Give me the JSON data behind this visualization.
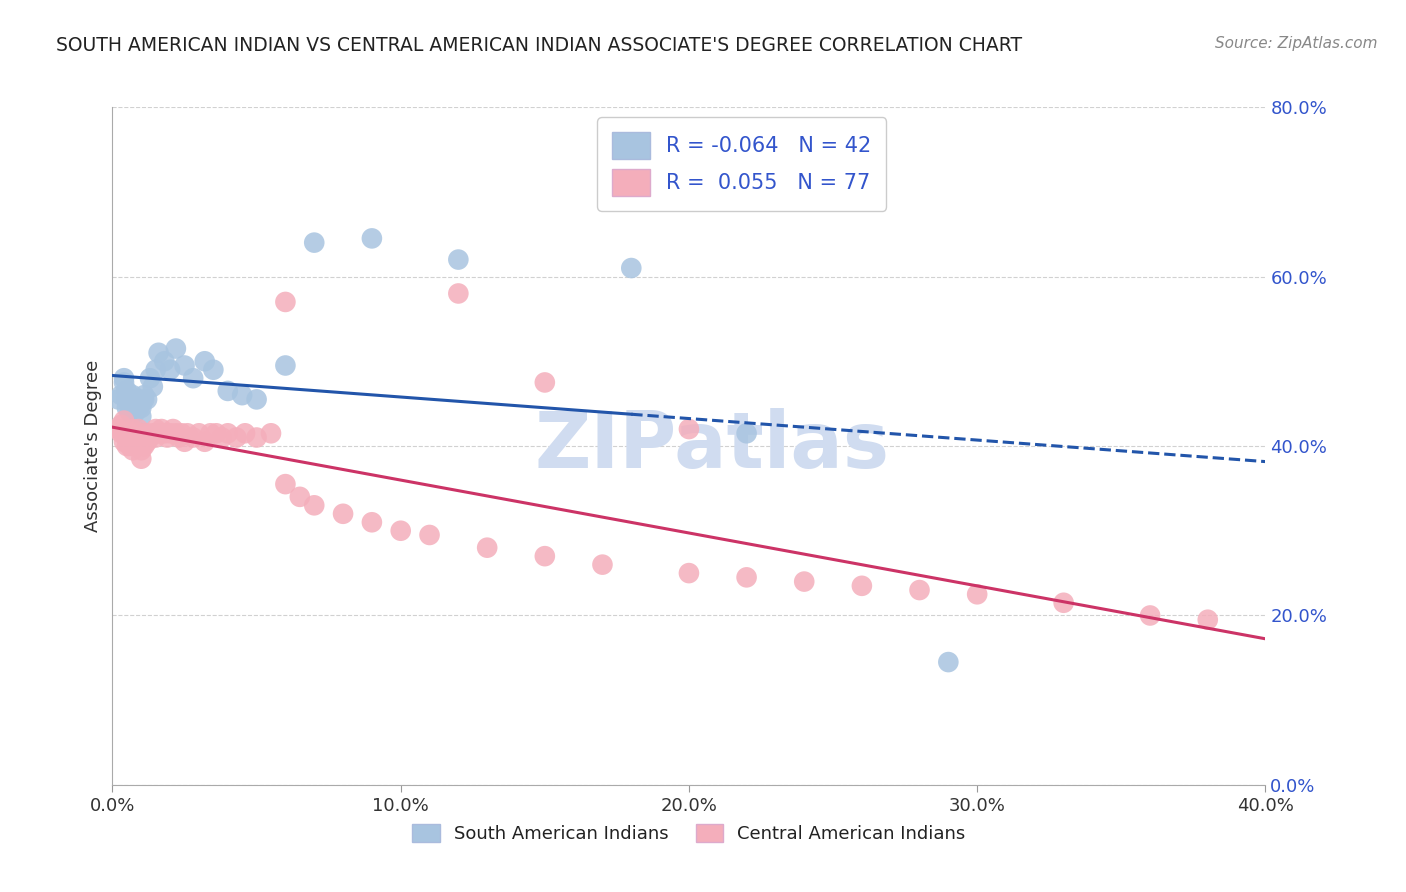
{
  "title": "SOUTH AMERICAN INDIAN VS CENTRAL AMERICAN INDIAN ASSOCIATE'S DEGREE CORRELATION CHART",
  "source": "Source: ZipAtlas.com",
  "ylabel": "Associate's Degree",
  "xlim": [
    0.0,
    0.4
  ],
  "ylim": [
    0.0,
    0.8
  ],
  "xticks": [
    0.0,
    0.1,
    0.2,
    0.3,
    0.4
  ],
  "yticks": [
    0.0,
    0.2,
    0.4,
    0.6,
    0.8
  ],
  "blue_R": -0.064,
  "blue_N": 42,
  "pink_R": 0.055,
  "pink_N": 77,
  "blue_color": "#A8C4E0",
  "pink_color": "#F4AEBB",
  "blue_line_color": "#2255AA",
  "pink_line_color": "#CC3366",
  "background_color": "#FFFFFF",
  "grid_color": "#CCCCCC",
  "title_color": "#222222",
  "watermark_color": "#D0DCF0",
  "legend_text_color": "#3355CC",
  "blue_x": [
    0.002,
    0.003,
    0.004,
    0.004,
    0.005,
    0.005,
    0.005,
    0.006,
    0.006,
    0.007,
    0.007,
    0.008,
    0.008,
    0.009,
    0.009,
    0.01,
    0.01,
    0.01,
    0.011,
    0.011,
    0.012,
    0.013,
    0.014,
    0.015,
    0.016,
    0.018,
    0.02,
    0.022,
    0.025,
    0.028,
    0.032,
    0.035,
    0.04,
    0.045,
    0.05,
    0.06,
    0.07,
    0.09,
    0.12,
    0.18,
    0.22,
    0.29
  ],
  "blue_y": [
    0.455,
    0.46,
    0.475,
    0.48,
    0.465,
    0.455,
    0.445,
    0.45,
    0.44,
    0.46,
    0.455,
    0.45,
    0.44,
    0.455,
    0.445,
    0.45,
    0.445,
    0.435,
    0.455,
    0.46,
    0.455,
    0.48,
    0.47,
    0.49,
    0.51,
    0.5,
    0.49,
    0.515,
    0.495,
    0.48,
    0.5,
    0.49,
    0.465,
    0.46,
    0.455,
    0.495,
    0.64,
    0.645,
    0.62,
    0.61,
    0.415,
    0.145
  ],
  "pink_x": [
    0.002,
    0.003,
    0.003,
    0.004,
    0.004,
    0.004,
    0.005,
    0.005,
    0.005,
    0.006,
    0.006,
    0.006,
    0.007,
    0.007,
    0.007,
    0.007,
    0.008,
    0.008,
    0.009,
    0.009,
    0.01,
    0.01,
    0.01,
    0.01,
    0.011,
    0.011,
    0.012,
    0.012,
    0.013,
    0.014,
    0.015,
    0.015,
    0.016,
    0.017,
    0.018,
    0.019,
    0.02,
    0.021,
    0.022,
    0.023,
    0.024,
    0.025,
    0.026,
    0.028,
    0.03,
    0.032,
    0.034,
    0.036,
    0.038,
    0.04,
    0.043,
    0.046,
    0.05,
    0.055,
    0.06,
    0.065,
    0.07,
    0.08,
    0.09,
    0.1,
    0.11,
    0.13,
    0.15,
    0.17,
    0.2,
    0.22,
    0.24,
    0.26,
    0.28,
    0.3,
    0.33,
    0.36,
    0.38,
    0.06,
    0.12,
    0.2,
    0.15
  ],
  "pink_y": [
    0.42,
    0.415,
    0.425,
    0.43,
    0.415,
    0.405,
    0.415,
    0.41,
    0.4,
    0.415,
    0.405,
    0.4,
    0.42,
    0.415,
    0.405,
    0.395,
    0.415,
    0.41,
    0.42,
    0.41,
    0.415,
    0.405,
    0.395,
    0.385,
    0.41,
    0.4,
    0.415,
    0.405,
    0.41,
    0.415,
    0.42,
    0.41,
    0.415,
    0.42,
    0.415,
    0.41,
    0.415,
    0.42,
    0.415,
    0.41,
    0.415,
    0.405,
    0.415,
    0.41,
    0.415,
    0.405,
    0.415,
    0.415,
    0.41,
    0.415,
    0.41,
    0.415,
    0.41,
    0.415,
    0.355,
    0.34,
    0.33,
    0.32,
    0.31,
    0.3,
    0.295,
    0.28,
    0.27,
    0.26,
    0.25,
    0.245,
    0.24,
    0.235,
    0.23,
    0.225,
    0.215,
    0.2,
    0.195,
    0.57,
    0.58,
    0.42,
    0.475
  ]
}
